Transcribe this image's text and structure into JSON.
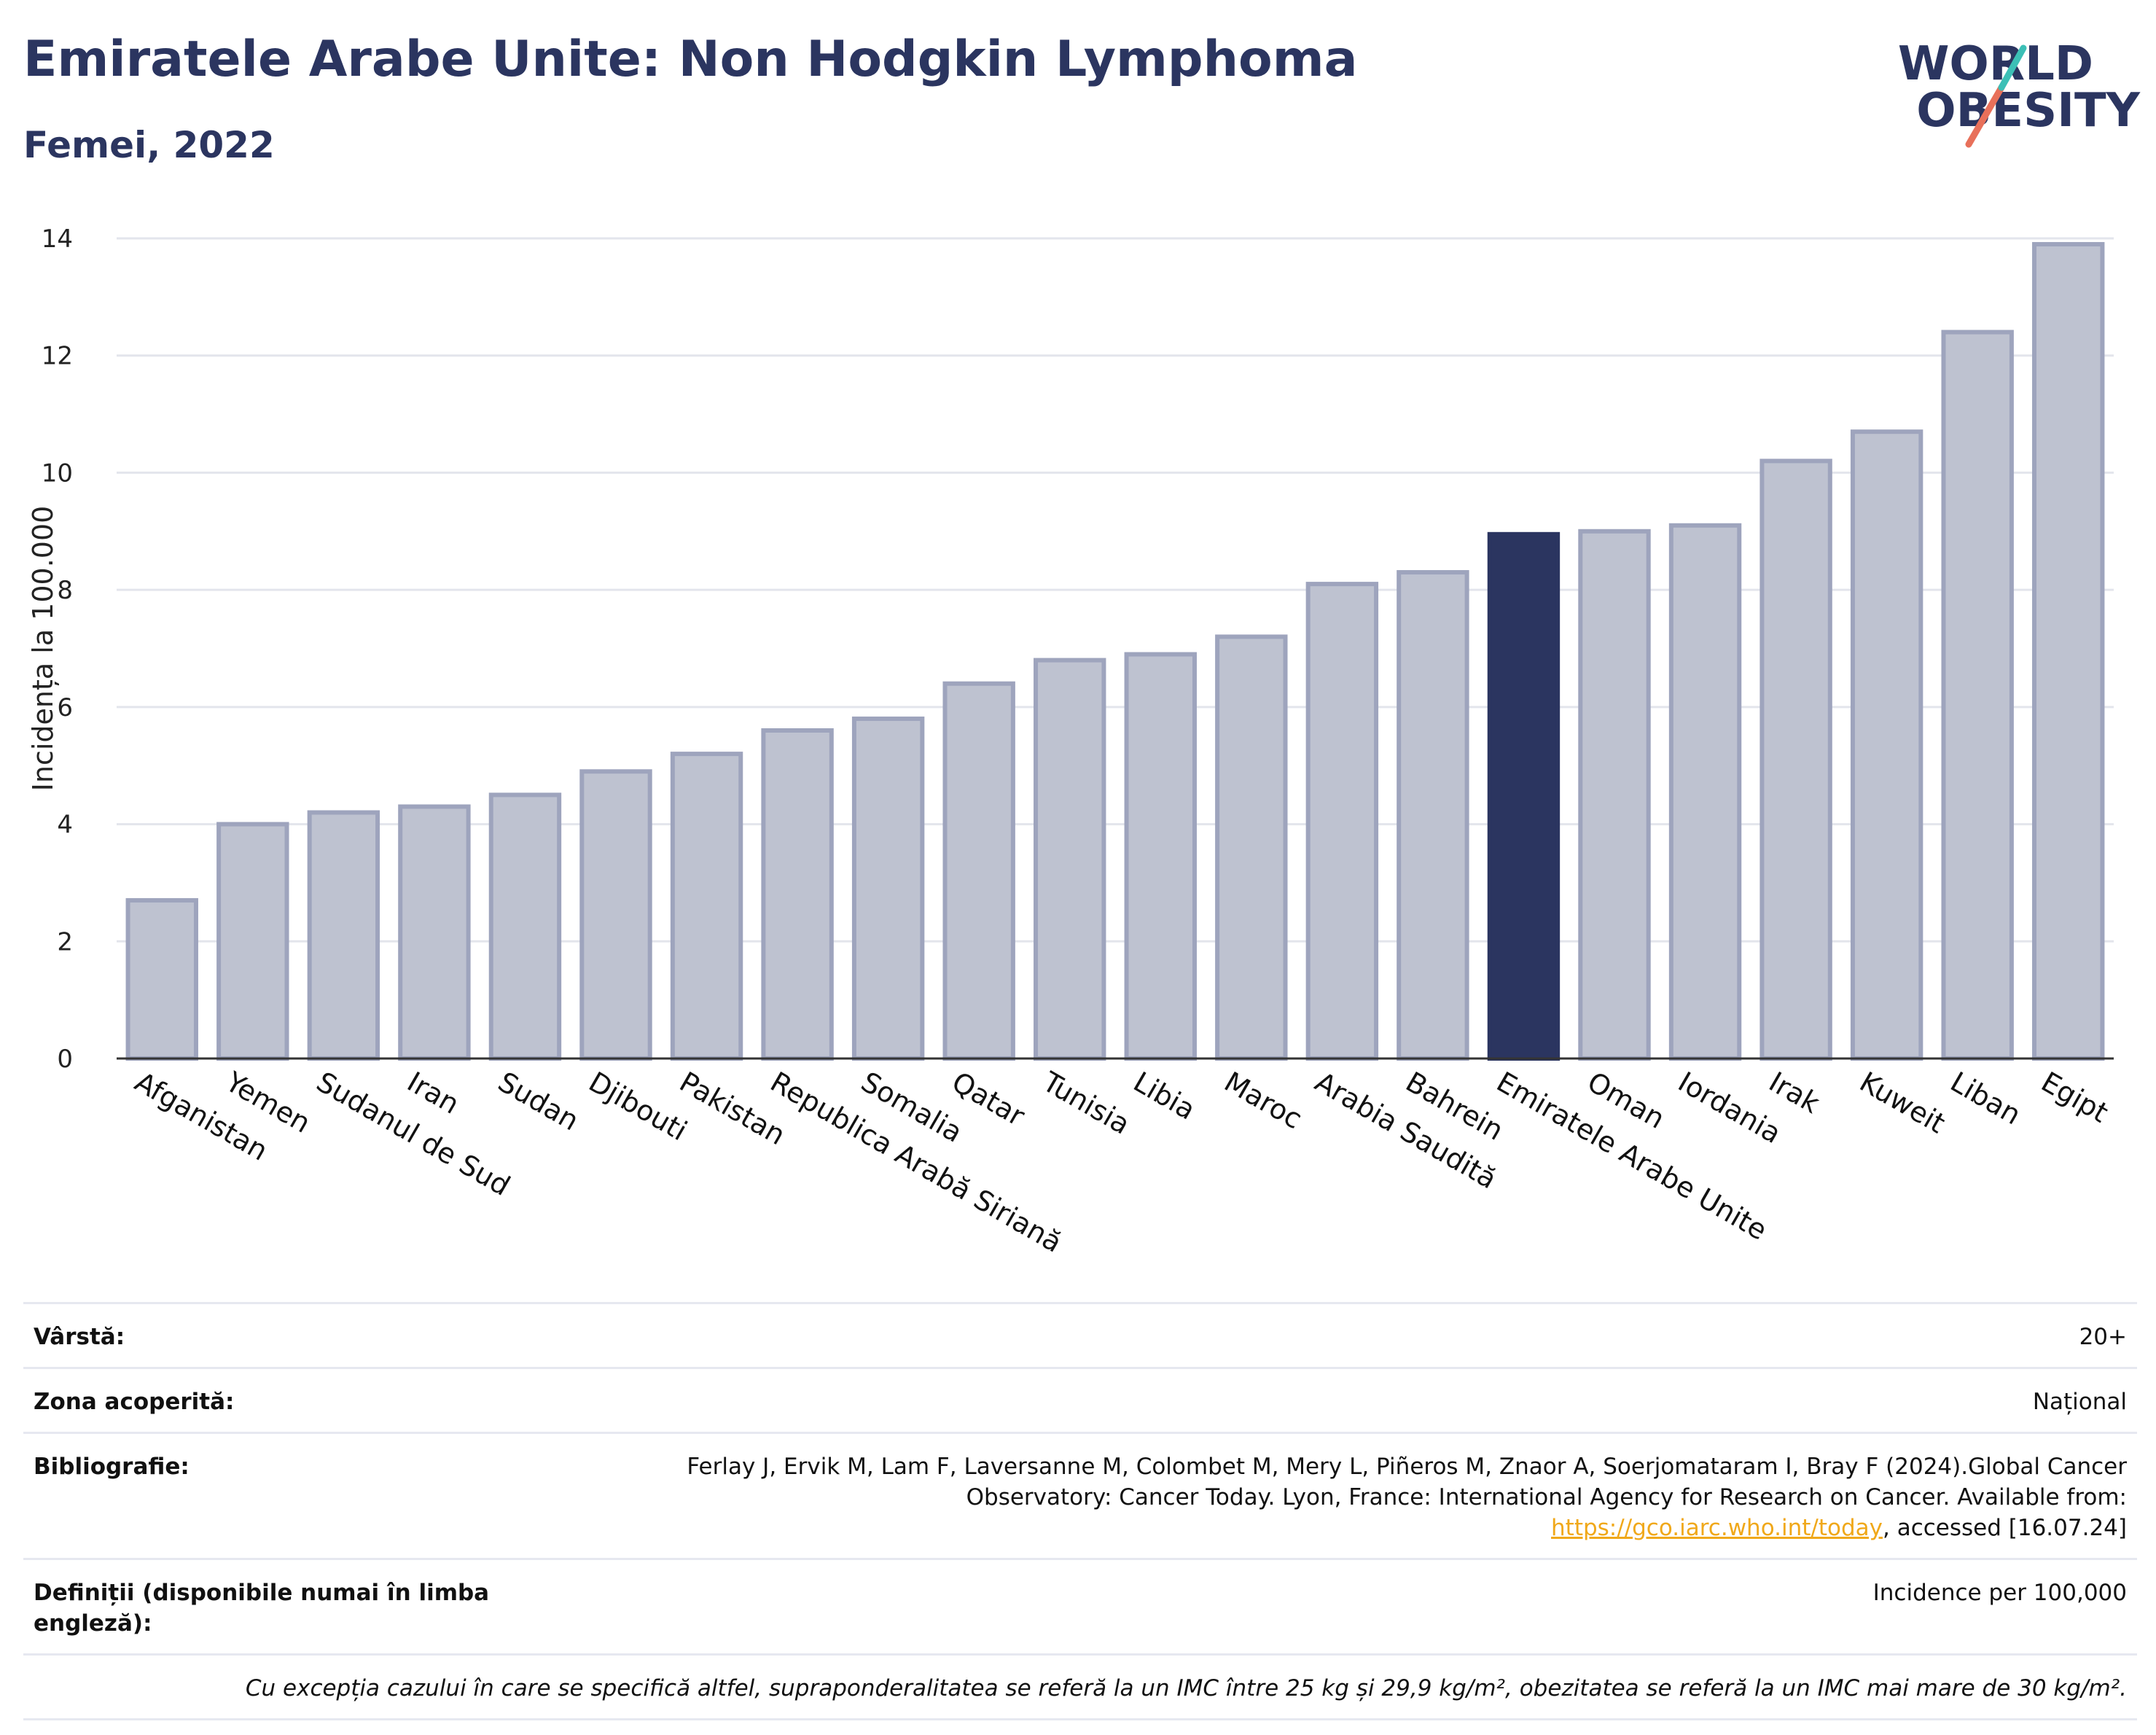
{
  "header": {
    "title": "Emiratele Arabe Unite: Non Hodgkin Lymphoma",
    "subtitle": "Femei, 2022"
  },
  "logo": {
    "line1": "WORLD",
    "line2": "OBESITY"
  },
  "colors": {
    "bar": "#bec2d0",
    "bar_edge": "#9ea4bd",
    "highlight": "#2b3560",
    "text": "#2b3560",
    "link": "#f0a81a"
  },
  "chart_data": {
    "type": "bar",
    "ylabel": "Incidența la 100.000",
    "xlabel": "",
    "ylim": [
      0,
      14
    ],
    "yticks": [
      0,
      2,
      4,
      6,
      8,
      10,
      12,
      14
    ],
    "grid": true,
    "highlight": "Emiratele Arabe Unite",
    "categories": [
      "Afganistan",
      "Yemen",
      "Sudanul de Sud",
      "Iran",
      "Sudan",
      "Djibouti",
      "Pakistan",
      "Republica Arabă Siriană",
      "Somalia",
      "Qatar",
      "Tunisia",
      "Libia",
      "Maroc",
      "Arabia Saudită",
      "Bahrein",
      "Emiratele Arabe Unite",
      "Oman",
      "Iordania",
      "Irak",
      "Kuweit",
      "Liban",
      "Egipt"
    ],
    "values": [
      2.7,
      4.0,
      4.2,
      4.3,
      4.5,
      4.9,
      5.2,
      5.6,
      5.8,
      6.4,
      6.8,
      6.9,
      7.2,
      8.1,
      8.3,
      8.95,
      9.0,
      9.1,
      10.2,
      10.7,
      12.4,
      13.9
    ]
  },
  "meta": {
    "age_label": "Vârstă:",
    "age_value": "20+",
    "area_label": "Zona acoperită:",
    "area_value": "Național",
    "bib_label": "Bibliografie:",
    "bib_text1": "Ferlay J, Ervik M, Lam F, Laversanne M, Colombet M, Mery L, Piñeros M, Znaor A, Soerjomataram I, Bray F (2024).Global Cancer Observatory: Cancer Today. Lyon, France: International Agency for Research on Cancer. Available from: ",
    "bib_link": "https://gco.iarc.who.int/today",
    "bib_text2": ", accessed [16.07.24]",
    "def_label": "Definiții (disponibile numai în limba engleză):",
    "def_value": "Incidence per 100,000",
    "note": "Cu excepția cazului în care se specifică altfel, supraponderalitatea se referă la un IMC între 25 kg și 29,9 kg/m², obezitatea se referă la un IMC mai mare de 30 kg/m²."
  }
}
